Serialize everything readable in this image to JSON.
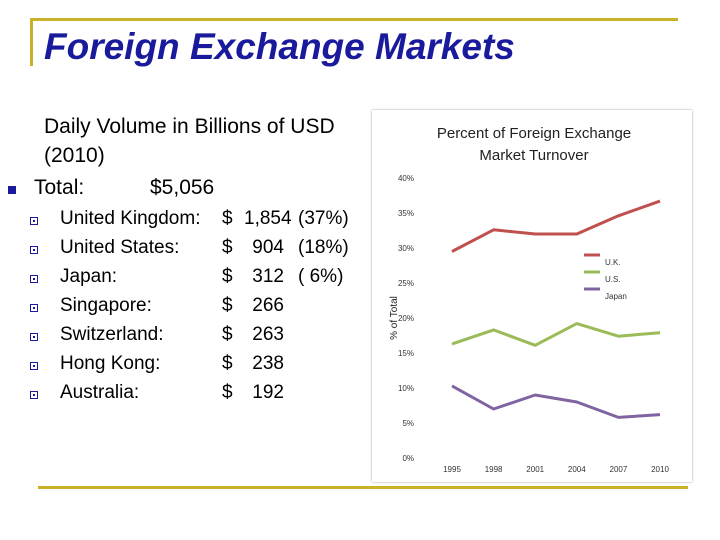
{
  "slide": {
    "title": "Foreign Exchange Markets",
    "subheading": "Daily Volume in Billions of USD (2010)",
    "total_label": "Total:",
    "total_value": "$5,056",
    "items": [
      {
        "name": "United Kingdom:",
        "currency": "$",
        "amount": "1,854",
        "share": "(37%)"
      },
      {
        "name": "United States:",
        "currency": "$",
        "amount": "904",
        "share": "(18%)"
      },
      {
        "name": "Japan:",
        "currency": "$",
        "amount": "312",
        "share": "( 6%)"
      },
      {
        "name": "Singapore:",
        "currency": "$",
        "amount": "266",
        "share": ""
      },
      {
        "name": "Switzerland:",
        "currency": "$",
        "amount": "263",
        "share": ""
      },
      {
        "name": "Hong Kong:",
        "currency": "$",
        "amount": "238",
        "share": ""
      },
      {
        "name": "Australia:",
        "currency": "$",
        "amount": "192",
        "share": ""
      }
    ]
  },
  "colors": {
    "title": "#1a1a9c",
    "frame": "#c9b227",
    "uk": "#c0504d",
    "us": "#9bbb59",
    "japan": "#8064a2"
  },
  "chart_data": {
    "type": "line",
    "title_line1": "Percent of Foreign Exchange",
    "title_line2": "Market Turnover",
    "ylabel": "% of Total",
    "xlabel": "",
    "x": [
      "1995",
      "1998",
      "2001",
      "2004",
      "2007",
      "2010"
    ],
    "ylim": [
      0,
      40
    ],
    "yticks": [
      "0%",
      "5%",
      "10%",
      "15%",
      "20%",
      "25%",
      "30%",
      "35%",
      "40%"
    ],
    "grid": false,
    "legend_position": "right",
    "series": [
      {
        "name": "U.K.",
        "color": "#c0504d",
        "values": [
          29.5,
          32.6,
          32.0,
          32.0,
          34.6,
          36.7
        ]
      },
      {
        "name": "U.S.",
        "color": "#9bbb59",
        "values": [
          16.3,
          18.3,
          16.1,
          19.2,
          17.4,
          17.9
        ]
      },
      {
        "name": "Japan",
        "color": "#8064a2",
        "values": [
          10.3,
          7.0,
          9.0,
          8.0,
          5.8,
          6.2
        ]
      }
    ]
  }
}
